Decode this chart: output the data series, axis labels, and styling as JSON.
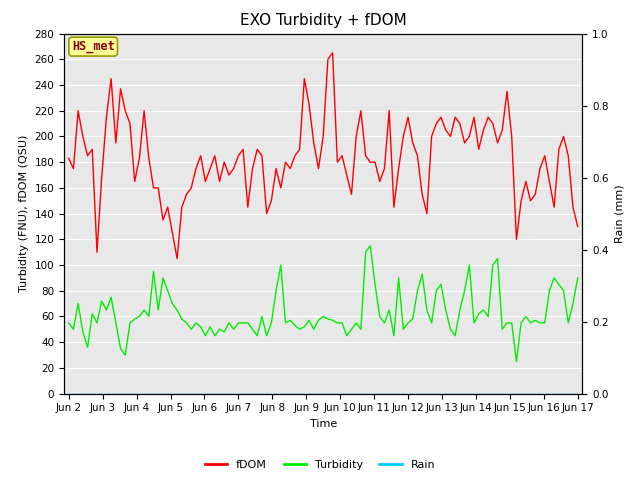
{
  "title": "EXO Turbidity + fDOM",
  "ylabel_left": "Turbidity (FNU), fDOM (QSU)",
  "ylabel_right": "Rain (mm)",
  "xlabel": "Time",
  "ylim_left": [
    0,
    280
  ],
  "ylim_right": [
    0.0,
    1.0
  ],
  "yticks_left": [
    0,
    20,
    40,
    60,
    80,
    100,
    120,
    140,
    160,
    180,
    200,
    220,
    240,
    260,
    280
  ],
  "yticks_right": [
    0.0,
    0.2,
    0.4,
    0.6,
    0.8,
    1.0
  ],
  "bg_color": "#e8e8e8",
  "fig_color": "#ffffff",
  "annotation_text": "HS_met",
  "annotation_bg": "#ffff99",
  "annotation_border": "#999900",
  "legend_entries": [
    "fDOM",
    "Turbidity",
    "Rain"
  ],
  "legend_colors": [
    "#ff0000",
    "#00ee00",
    "#00ccff"
  ],
  "fdom_color": "#ff0000",
  "turbidity_color": "#00ee00",
  "rain_color": "#00ccff",
  "fdom_data": [
    183,
    175,
    220,
    200,
    185,
    190,
    110,
    168,
    215,
    245,
    195,
    237,
    220,
    210,
    165,
    183,
    220,
    183,
    160,
    160,
    135,
    145,
    125,
    105,
    145,
    155,
    160,
    175,
    185,
    165,
    175,
    185,
    165,
    180,
    170,
    175,
    185,
    190,
    145,
    175,
    190,
    185,
    140,
    150,
    175,
    160,
    180,
    175,
    185,
    190,
    245,
    225,
    195,
    175,
    200,
    260,
    265,
    180,
    185,
    170,
    155,
    200,
    220,
    185,
    180,
    180,
    165,
    175,
    220,
    145,
    175,
    200,
    215,
    195,
    185,
    155,
    140,
    200,
    210,
    215,
    205,
    200,
    215,
    210,
    195,
    200,
    215,
    190,
    205,
    215,
    210,
    195,
    205,
    235,
    200,
    120,
    150,
    165,
    150,
    155,
    175,
    185,
    165,
    145,
    190,
    200,
    185,
    145,
    130
  ],
  "turbidity_data": [
    55,
    50,
    70,
    48,
    36,
    62,
    55,
    72,
    65,
    75,
    55,
    35,
    30,
    55,
    58,
    60,
    65,
    60,
    95,
    65,
    90,
    80,
    70,
    65,
    58,
    55,
    50,
    55,
    52,
    45,
    52,
    45,
    50,
    48,
    55,
    50,
    55,
    55,
    55,
    50,
    45,
    60,
    45,
    55,
    80,
    100,
    55,
    57,
    53,
    50,
    52,
    57,
    50,
    57,
    60,
    58,
    57,
    55,
    55,
    45,
    50,
    55,
    50,
    110,
    115,
    85,
    60,
    55,
    65,
    45,
    90,
    50,
    55,
    58,
    80,
    93,
    65,
    55,
    80,
    85,
    65,
    50,
    45,
    65,
    80,
    100,
    55,
    62,
    65,
    60,
    100,
    105,
    50,
    55,
    55,
    25,
    55,
    60,
    55,
    57,
    55,
    55,
    80,
    90,
    85,
    80,
    55,
    70,
    90
  ],
  "rain_data": [
    0,
    0,
    0,
    0,
    0,
    0,
    0,
    0,
    0,
    0,
    0,
    0,
    0,
    0,
    0,
    0,
    0,
    0,
    0,
    0,
    0,
    0,
    0,
    0,
    0,
    0,
    0,
    0,
    0,
    0,
    0,
    0,
    0,
    0,
    0,
    0,
    0,
    0,
    0,
    0,
    0,
    0,
    0,
    0,
    0,
    0,
    0,
    0,
    0,
    0,
    0,
    0,
    0,
    0,
    0,
    0,
    0,
    0,
    0,
    0,
    0,
    0,
    0,
    0,
    0,
    0,
    0,
    0,
    0,
    0,
    0,
    0,
    0,
    0,
    0,
    0,
    0,
    0,
    0,
    0,
    0,
    0,
    0,
    0,
    0,
    0,
    0,
    0,
    0,
    0,
    0,
    0,
    0,
    0,
    0,
    0,
    0,
    0,
    0,
    0,
    0,
    0,
    0,
    0,
    0,
    0,
    0,
    0,
    0
  ],
  "xtick_labels": [
    "Jun 2",
    "Jun 3",
    "Jun 4",
    "Jun 5",
    "Jun 6",
    "Jun 7",
    "Jun 8",
    "Jun 9",
    "Jun 10",
    "Jun 11",
    "Jun 12",
    "Jun 13",
    "Jun 14",
    "Jun 15",
    "Jun 16",
    "Jun 17"
  ],
  "n_points": 109,
  "linewidth": 1.0,
  "title_fontsize": 11,
  "axis_fontsize": 8,
  "tick_fontsize": 7.5,
  "legend_fontsize": 8
}
